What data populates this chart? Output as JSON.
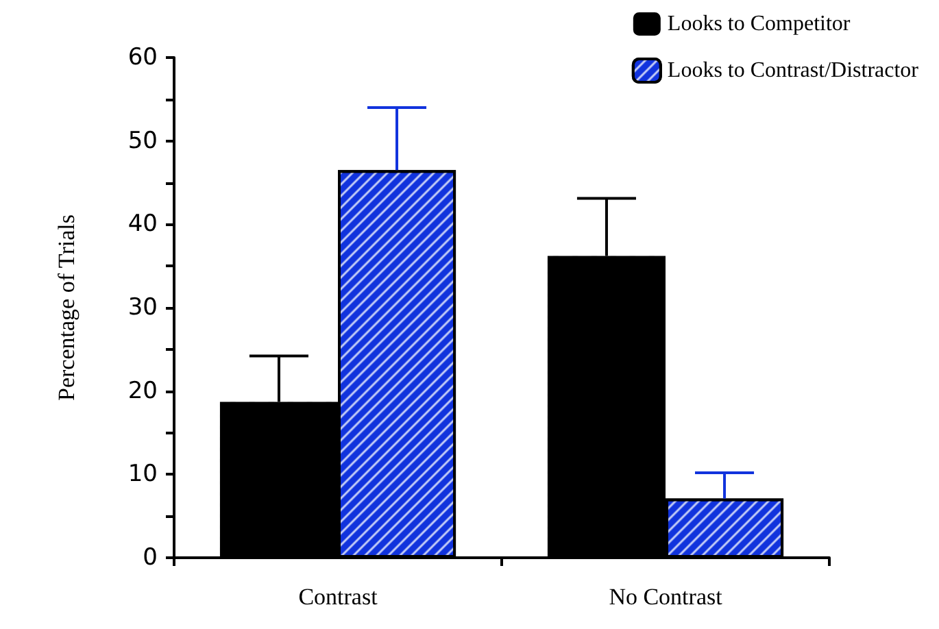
{
  "chart_data": {
    "type": "bar",
    "ylabel": "Percentage of Trials",
    "categories": [
      "Contrast",
      "No Contrast"
    ],
    "series": [
      {
        "name": "Looks to Competitor",
        "color": "#000000",
        "values": [
          18.7,
          36.2
        ],
        "errors": [
          [
            18.7,
            24.2
          ],
          [
            36.2,
            43.1
          ]
        ]
      },
      {
        "name": "Looks to Contrast/Distractor",
        "color": "#1133dd",
        "values": [
          46.5,
          7.1
        ],
        "errors": [
          [
            46.5,
            54.0
          ],
          [
            7.1,
            10.2
          ]
        ]
      }
    ],
    "ylim": [
      0,
      60
    ],
    "yticks": [
      0,
      {
        "value": 5,
        "label": null
      },
      10,
      {
        "value": 15,
        "label": null
      },
      20,
      {
        "value": 25,
        "label": null
      },
      30,
      {
        "value": 35,
        "label": null
      },
      40,
      {
        "value": 45,
        "label": null
      },
      50,
      {
        "value": 55,
        "label": null
      },
      60
    ],
    "grid": false,
    "legend": "top right"
  }
}
